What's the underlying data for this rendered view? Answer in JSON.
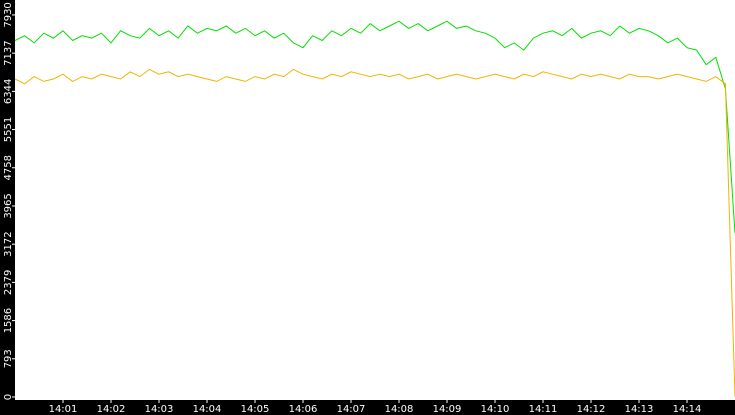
{
  "chart_data": {
    "type": "line",
    "x": [
      0,
      0.2,
      0.4,
      0.6,
      0.8,
      1,
      1.2,
      1.4,
      1.6,
      1.8,
      2,
      2.2,
      2.4,
      2.6,
      2.8,
      3,
      3.2,
      3.4,
      3.6,
      3.8,
      4,
      4.2,
      4.4,
      4.6,
      4.8,
      5,
      5.2,
      5.4,
      5.6,
      5.8,
      6,
      6.2,
      6.4,
      6.6,
      6.8,
      7,
      7.2,
      7.4,
      7.6,
      7.8,
      8,
      8.2,
      8.4,
      8.6,
      8.8,
      9,
      9.2,
      9.4,
      9.6,
      9.8,
      10,
      10.2,
      10.4,
      10.6,
      10.8,
      11,
      11.2,
      11.4,
      11.6,
      11.8,
      12,
      12.2,
      12.4,
      12.6,
      12.8,
      13,
      13.2,
      13.4,
      13.6,
      13.8,
      14,
      14.2,
      14.4,
      14.6,
      14.8,
      15
    ],
    "series": [
      {
        "color": "#00e000",
        "values": [
          7400,
          7500,
          7350,
          7550,
          7450,
          7600,
          7400,
          7500,
          7450,
          7550,
          7350,
          7600,
          7500,
          7450,
          7650,
          7500,
          7600,
          7450,
          7700,
          7550,
          7650,
          7600,
          7700,
          7550,
          7650,
          7500,
          7600,
          7450,
          7550,
          7350,
          7250,
          7500,
          7400,
          7600,
          7500,
          7650,
          7550,
          7750,
          7600,
          7700,
          7800,
          7650,
          7750,
          7600,
          7700,
          7800,
          7650,
          7700,
          7600,
          7550,
          7450,
          7250,
          7350,
          7200,
          7450,
          7550,
          7600,
          7500,
          7650,
          7450,
          7550,
          7600,
          7500,
          7700,
          7550,
          7650,
          7600,
          7500,
          7350,
          7450,
          7250,
          7200,
          6900,
          7050,
          6400,
          3400
        ]
      },
      {
        "color": "#f0b400",
        "values": [
          6600,
          6500,
          6650,
          6550,
          6600,
          6700,
          6550,
          6650,
          6600,
          6700,
          6650,
          6600,
          6750,
          6650,
          6800,
          6700,
          6750,
          6650,
          6700,
          6650,
          6600,
          6550,
          6650,
          6600,
          6550,
          6650,
          6600,
          6700,
          6650,
          6800,
          6700,
          6650,
          6600,
          6700,
          6650,
          6750,
          6700,
          6650,
          6700,
          6650,
          6700,
          6600,
          6650,
          6700,
          6600,
          6650,
          6700,
          6650,
          6600,
          6650,
          6700,
          6650,
          6600,
          6700,
          6650,
          6750,
          6700,
          6650,
          6600,
          6700,
          6650,
          6700,
          6650,
          6600,
          6700,
          6650,
          6650,
          6600,
          6650,
          6700,
          6650,
          6600,
          6550,
          6650,
          6500,
          0
        ]
      }
    ],
    "xlim": [
      0,
      15
    ],
    "ylim": [
      0,
      8240
    ],
    "yticks": [
      0,
      793,
      1586,
      2379,
      3172,
      3965,
      4758,
      5551,
      6344,
      7137,
      7930
    ],
    "xticks": [
      {
        "value": 1,
        "label": "14:01"
      },
      {
        "value": 2,
        "label": "14:02"
      },
      {
        "value": 3,
        "label": "14:03"
      },
      {
        "value": 4,
        "label": "14:04"
      },
      {
        "value": 5,
        "label": "14:05"
      },
      {
        "value": 6,
        "label": "14:06"
      },
      {
        "value": 7,
        "label": "14:07"
      },
      {
        "value": 8,
        "label": "14:08"
      },
      {
        "value": 9,
        "label": "14:09"
      },
      {
        "value": 10,
        "label": "14:10"
      },
      {
        "value": 11,
        "label": "14:11"
      },
      {
        "value": 12,
        "label": "14:12"
      },
      {
        "value": 13,
        "label": "14:13"
      },
      {
        "value": 14,
        "label": "14:14"
      }
    ]
  }
}
